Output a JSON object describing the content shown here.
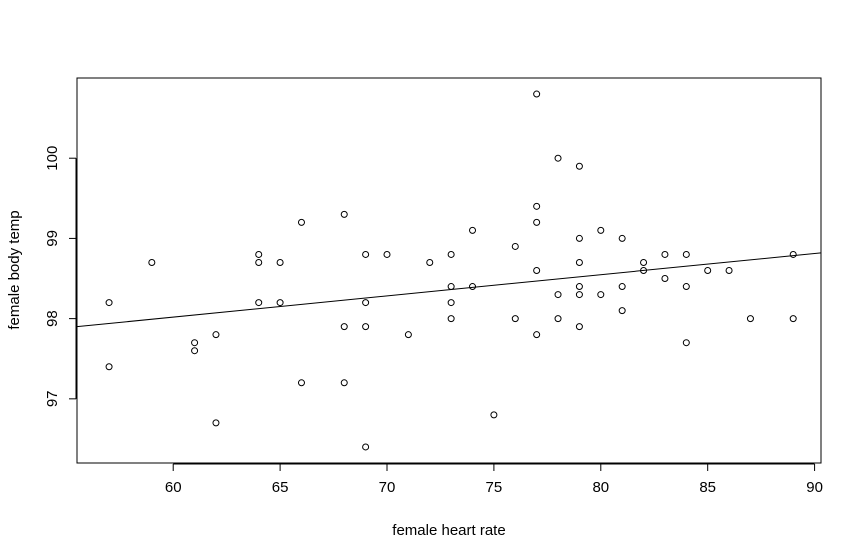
{
  "chart_data": {
    "type": "scatter",
    "title": "",
    "xlabel": "female heart rate",
    "ylabel": "female body temp",
    "xlim": [
      55.5,
      90.3
    ],
    "ylim": [
      96.2,
      101.0
    ],
    "xticks": [
      60,
      65,
      70,
      75,
      80,
      85,
      90
    ],
    "yticks": [
      97,
      98,
      99,
      100
    ],
    "grid": false,
    "legend": "none",
    "points": [
      [
        57,
        98.2
      ],
      [
        57,
        97.4
      ],
      [
        59,
        98.7
      ],
      [
        61,
        97.7
      ],
      [
        61,
        97.6
      ],
      [
        62,
        97.8
      ],
      [
        62,
        96.7
      ],
      [
        64,
        98.8
      ],
      [
        64,
        98.7
      ],
      [
        64,
        98.2
      ],
      [
        65,
        98.7
      ],
      [
        65,
        98.2
      ],
      [
        66,
        99.2
      ],
      [
        66,
        97.2
      ],
      [
        68,
        99.3
      ],
      [
        68,
        97.9
      ],
      [
        68,
        97.2
      ],
      [
        69,
        98.8
      ],
      [
        69,
        98.2
      ],
      [
        69,
        97.9
      ],
      [
        69,
        96.4
      ],
      [
        70,
        98.8
      ],
      [
        71,
        97.8
      ],
      [
        72,
        98.7
      ],
      [
        73,
        98.8
      ],
      [
        73,
        98.4
      ],
      [
        73,
        98.2
      ],
      [
        73,
        98.0
      ],
      [
        74,
        99.1
      ],
      [
        74,
        98.4
      ],
      [
        75,
        96.8
      ],
      [
        76,
        98.9
      ],
      [
        76,
        98.0
      ],
      [
        77,
        100.8
      ],
      [
        77,
        99.4
      ],
      [
        77,
        99.2
      ],
      [
        77,
        98.6
      ],
      [
        77,
        97.8
      ],
      [
        78,
        100.0
      ],
      [
        78,
        98.3
      ],
      [
        78,
        98.0
      ],
      [
        79,
        99.9
      ],
      [
        79,
        99.0
      ],
      [
        79,
        98.7
      ],
      [
        79,
        98.4
      ],
      [
        79,
        98.3
      ],
      [
        79,
        97.9
      ],
      [
        80,
        99.1
      ],
      [
        80,
        98.3
      ],
      [
        81,
        99.0
      ],
      [
        81,
        98.4
      ],
      [
        81,
        98.1
      ],
      [
        82,
        98.7
      ],
      [
        82,
        98.6
      ],
      [
        83,
        98.8
      ],
      [
        83,
        98.5
      ],
      [
        84,
        98.8
      ],
      [
        84,
        98.4
      ],
      [
        84,
        97.7
      ],
      [
        85,
        98.6
      ],
      [
        86,
        98.6
      ],
      [
        87,
        98.0
      ],
      [
        89,
        98.8
      ],
      [
        89,
        98.0
      ]
    ],
    "regression_line": {
      "x": [
        55.5,
        90.3
      ],
      "y": [
        97.9,
        98.82
      ]
    },
    "colors": {
      "points": "#000000",
      "line": "#000000",
      "frame": "#000000",
      "background": "#ffffff"
    }
  }
}
